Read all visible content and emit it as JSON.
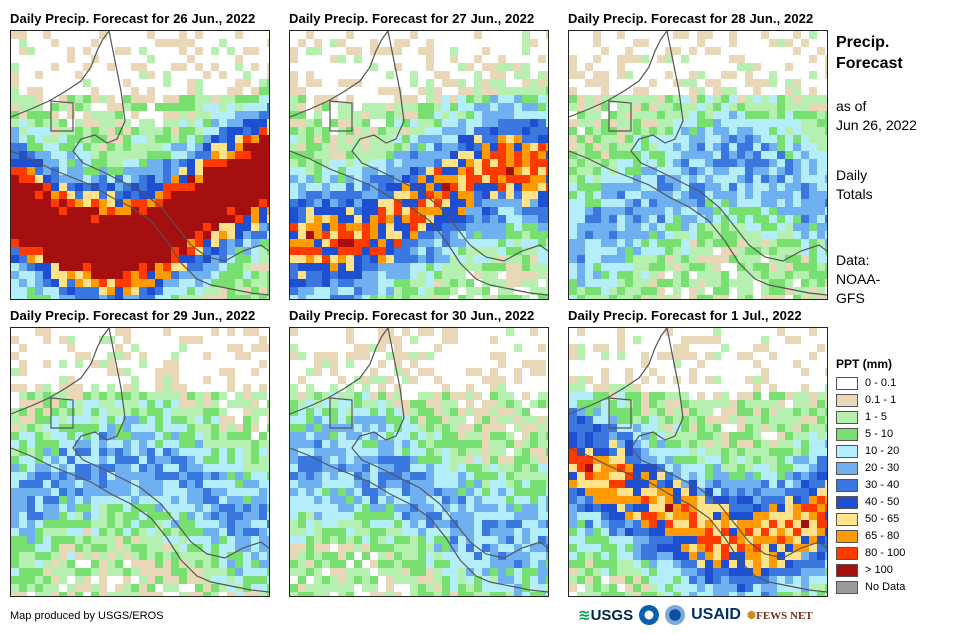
{
  "panels": [
    {
      "title": "Daily Precip. Forecast for 26 Jun., 2022",
      "wetness": 3
    },
    {
      "title": "Daily Precip. Forecast for 27 Jun., 2022",
      "wetness": 2
    },
    {
      "title": "Daily Precip. Forecast for 28 Jun., 2022",
      "wetness": 1
    },
    {
      "title": "Daily Precip. Forecast for 29 Jun., 2022",
      "wetness": 1
    },
    {
      "title": "Daily Precip. Forecast for 30 Jun., 2022",
      "wetness": 1
    },
    {
      "title": "Daily Precip. Forecast for 1 Jul., 2022",
      "wetness": 2
    }
  ],
  "side": {
    "title_line1": "Precip.",
    "title_line2": "Forecast",
    "asof_line1": "as of",
    "asof_line2": "Jun 26, 2022",
    "totals_line1": "Daily",
    "totals_line2": "Totals",
    "data_line1": "Data:",
    "data_line2": "NOAA-",
    "data_line3": "GFS"
  },
  "legend": {
    "title": "PPT (mm)",
    "items": [
      {
        "label": "0 - 0.1",
        "color": "#ffffff"
      },
      {
        "label": "0.1 - 1",
        "color": "#e8d8b8"
      },
      {
        "label": "1 - 5",
        "color": "#b6f0b0"
      },
      {
        "label": "5 - 10",
        "color": "#78e070"
      },
      {
        "label": "10 - 20",
        "color": "#b4eefa"
      },
      {
        "label": "20 - 30",
        "color": "#6fb0f0"
      },
      {
        "label": "30 - 40",
        "color": "#3a78e0"
      },
      {
        "label": "40 - 50",
        "color": "#1d4fd0"
      },
      {
        "label": "50 - 65",
        "color": "#ffe38a"
      },
      {
        "label": "65 - 80",
        "color": "#ff9a00"
      },
      {
        "label": "80 - 100",
        "color": "#ff3a00"
      },
      {
        "label": "> 100",
        "color": "#a50f0f"
      },
      {
        "label": "No Data",
        "color": "#9a9a9a"
      }
    ]
  },
  "credit": "Map produced by USGS/EROS",
  "logos": {
    "usgs": "USGS",
    "usaid": "USAID",
    "fewsnet": "FEWS NET"
  }
}
